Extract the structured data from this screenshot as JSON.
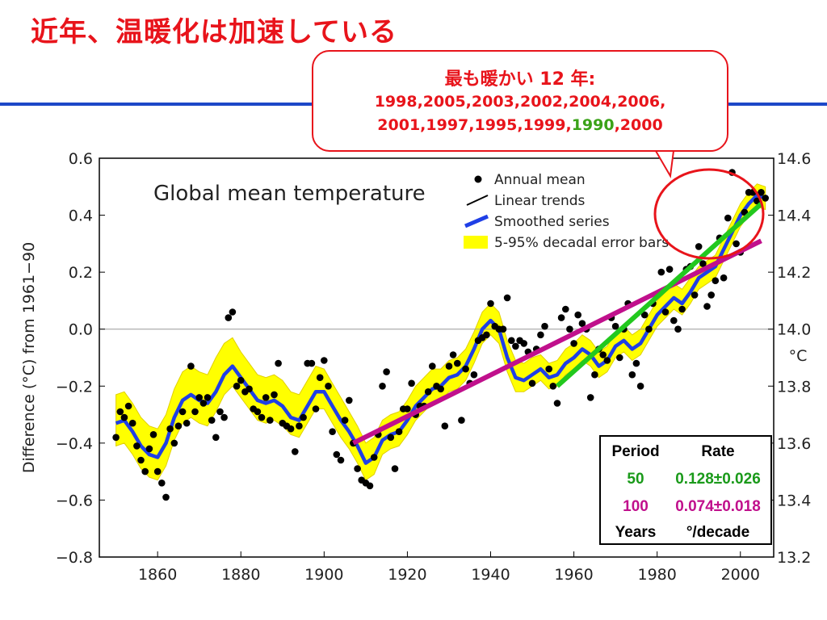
{
  "slide": {
    "title": "近年、温暖化は加速している",
    "callout_heading": "最も暖かい 12 年:",
    "warmest_line1": "1998,2005,2003,2002,2004,2006,",
    "warmest_line2_a": "2001,1997,1995,1999,",
    "warmest_line2_highlight": "1990",
    "warmest_line2_b": ",2000",
    "colors": {
      "title": "#e8141b",
      "rule": "#1d48c8",
      "highlight": "#3aa218"
    }
  },
  "rate_table": {
    "header_period": "Period",
    "header_rate": "Rate",
    "rows": [
      {
        "period": "50",
        "rate": "0.128±0.026",
        "color": "#1a9a1a"
      },
      {
        "period": "100",
        "rate": "0.074±0.018",
        "color": "#c0108c"
      }
    ],
    "footer_period": "Years",
    "footer_rate": "°/decade"
  },
  "chart_data": {
    "type": "scatter",
    "title": "Global mean temperature",
    "ylabel": "Difference (°C) from 1961−90",
    "y2label": "°C",
    "xlim": [
      1846,
      2008
    ],
    "ylim": [
      -0.8,
      0.6
    ],
    "y2lim": [
      13.2,
      14.6
    ],
    "xticks": [
      1860,
      1880,
      1900,
      1920,
      1940,
      1960,
      1980,
      2000
    ],
    "yticks": [
      -0.8,
      -0.6,
      -0.4,
      -0.2,
      0.0,
      0.2,
      0.4,
      0.6
    ],
    "ytick_labels": [
      "−0.8",
      "−0.6",
      "−0.4",
      "−0.2",
      "0.0",
      "0.2",
      "0.4",
      "0.6"
    ],
    "y2ticks": [
      13.2,
      13.4,
      13.6,
      13.8,
      14.0,
      14.2,
      14.4,
      14.6
    ],
    "y2tick_labels": [
      "13.2",
      "13.4",
      "13.6",
      "13.8",
      "14.0",
      "14.2",
      "14.4",
      "14.6"
    ],
    "legend": [
      {
        "label": "Annual mean",
        "kind": "dot",
        "color": "#000000"
      },
      {
        "label": "Linear trends",
        "kind": "line",
        "color": "#000000"
      },
      {
        "label": "Smoothed series",
        "kind": "thick-line",
        "color": "#1f3fe6"
      },
      {
        "label": "5-95% decadal error bars",
        "kind": "band",
        "color": "#ffff00"
      }
    ],
    "legend_position": "top-right",
    "colors": {
      "smooth": "#1f3fe6",
      "band": "#ffff00",
      "band_edge": "#e0d000",
      "trend50": "#22c81e",
      "trend100": "#c0108c",
      "points": "#000000"
    },
    "annual_mean": {
      "x": [
        1850,
        1851,
        1852,
        1853,
        1854,
        1855,
        1856,
        1857,
        1858,
        1859,
        1860,
        1861,
        1862,
        1863,
        1864,
        1865,
        1866,
        1867,
        1868,
        1869,
        1870,
        1871,
        1872,
        1873,
        1874,
        1875,
        1876,
        1877,
        1878,
        1879,
        1880,
        1881,
        1882,
        1883,
        1884,
        1885,
        1886,
        1887,
        1888,
        1889,
        1890,
        1891,
        1892,
        1893,
        1894,
        1895,
        1896,
        1897,
        1898,
        1899,
        1900,
        1901,
        1902,
        1903,
        1904,
        1905,
        1906,
        1907,
        1908,
        1909,
        1910,
        1911,
        1912,
        1913,
        1914,
        1915,
        1916,
        1917,
        1918,
        1919,
        1920,
        1921,
        1922,
        1923,
        1924,
        1925,
        1926,
        1927,
        1928,
        1929,
        1930,
        1931,
        1932,
        1933,
        1934,
        1935,
        1936,
        1937,
        1938,
        1939,
        1940,
        1941,
        1942,
        1943,
        1944,
        1945,
        1946,
        1947,
        1948,
        1949,
        1950,
        1951,
        1952,
        1953,
        1954,
        1955,
        1956,
        1957,
        1958,
        1959,
        1960,
        1961,
        1962,
        1963,
        1964,
        1965,
        1966,
        1967,
        1968,
        1969,
        1970,
        1971,
        1972,
        1973,
        1974,
        1975,
        1976,
        1977,
        1978,
        1979,
        1980,
        1981,
        1982,
        1983,
        1984,
        1985,
        1986,
        1987,
        1988,
        1989,
        1990,
        1991,
        1992,
        1993,
        1994,
        1995,
        1996,
        1997,
        1998,
        1999,
        2000,
        2001,
        2002,
        2003,
        2004,
        2005,
        2006
      ],
      "y": [
        -0.38,
        -0.29,
        -0.31,
        -0.27,
        -0.33,
        -0.41,
        -0.46,
        -0.5,
        -0.42,
        -0.37,
        -0.5,
        -0.54,
        -0.59,
        -0.35,
        -0.4,
        -0.34,
        -0.29,
        -0.33,
        -0.13,
        -0.29,
        -0.24,
        -0.26,
        -0.24,
        -0.32,
        -0.38,
        -0.29,
        -0.31,
        0.04,
        0.06,
        -0.2,
        -0.18,
        -0.22,
        -0.21,
        -0.28,
        -0.29,
        -0.31,
        -0.24,
        -0.32,
        -0.23,
        -0.12,
        -0.33,
        -0.34,
        -0.35,
        -0.43,
        -0.34,
        -0.31,
        -0.12,
        -0.12,
        -0.28,
        -0.17,
        -0.11,
        -0.2,
        -0.36,
        -0.44,
        -0.46,
        -0.32,
        -0.25,
        -0.4,
        -0.49,
        -0.53,
        -0.54,
        -0.55,
        -0.45,
        -0.37,
        -0.2,
        -0.15,
        -0.38,
        -0.49,
        -0.36,
        -0.28,
        -0.28,
        -0.19,
        -0.3,
        -0.27,
        -0.27,
        -0.22,
        -0.13,
        -0.2,
        -0.21,
        -0.34,
        -0.13,
        -0.09,
        -0.12,
        -0.32,
        -0.14,
        -0.19,
        -0.16,
        -0.04,
        -0.03,
        -0.02,
        0.09,
        0.01,
        0.0,
        0.0,
        0.11,
        -0.04,
        -0.06,
        -0.04,
        -0.05,
        -0.08,
        -0.19,
        -0.07,
        -0.02,
        0.01,
        -0.14,
        -0.2,
        -0.26,
        0.04,
        0.07,
        0.0,
        -0.05,
        0.05,
        0.02,
        0.0,
        -0.24,
        -0.16,
        -0.07,
        -0.09,
        -0.11,
        0.04,
        0.01,
        -0.1,
        0.0,
        0.09,
        -0.16,
        -0.12,
        -0.2,
        0.05,
        0.0,
        0.09,
        0.12,
        0.2,
        0.06,
        0.21,
        0.03,
        0.0,
        0.07,
        0.21,
        0.22,
        0.12,
        0.29,
        0.23,
        0.08,
        0.12,
        0.17,
        0.32,
        0.18,
        0.39,
        0.55,
        0.3,
        0.27,
        0.41,
        0.48,
        0.48,
        0.45,
        0.48,
        0.46
      ]
    },
    "smoothed_series": {
      "x": [
        1850,
        1852,
        1854,
        1856,
        1858,
        1860,
        1862,
        1864,
        1866,
        1868,
        1870,
        1872,
        1874,
        1876,
        1878,
        1880,
        1882,
        1884,
        1886,
        1888,
        1890,
        1892,
        1894,
        1896,
        1898,
        1900,
        1902,
        1904,
        1906,
        1908,
        1910,
        1912,
        1914,
        1916,
        1918,
        1920,
        1922,
        1924,
        1926,
        1928,
        1930,
        1932,
        1934,
        1936,
        1938,
        1940,
        1942,
        1944,
        1946,
        1948,
        1950,
        1952,
        1954,
        1956,
        1958,
        1960,
        1962,
        1964,
        1966,
        1968,
        1970,
        1972,
        1974,
        1976,
        1978,
        1980,
        1982,
        1984,
        1986,
        1988,
        1990,
        1992,
        1994,
        1996,
        1998,
        2000,
        2002,
        2004,
        2006
      ],
      "y": [
        -0.33,
        -0.32,
        -0.36,
        -0.41,
        -0.44,
        -0.45,
        -0.4,
        -0.31,
        -0.25,
        -0.23,
        -0.25,
        -0.26,
        -0.22,
        -0.16,
        -0.13,
        -0.17,
        -0.21,
        -0.25,
        -0.26,
        -0.25,
        -0.27,
        -0.31,
        -0.32,
        -0.27,
        -0.22,
        -0.22,
        -0.27,
        -0.32,
        -0.36,
        -0.41,
        -0.47,
        -0.45,
        -0.39,
        -0.37,
        -0.36,
        -0.32,
        -0.27,
        -0.24,
        -0.21,
        -0.2,
        -0.17,
        -0.16,
        -0.13,
        -0.07,
        0.0,
        0.03,
        0.0,
        -0.1,
        -0.17,
        -0.18,
        -0.16,
        -0.14,
        -0.17,
        -0.16,
        -0.12,
        -0.1,
        -0.07,
        -0.09,
        -0.13,
        -0.11,
        -0.06,
        -0.04,
        -0.07,
        -0.05,
        0.0,
        0.05,
        0.08,
        0.11,
        0.09,
        0.13,
        0.18,
        0.2,
        0.22,
        0.28,
        0.34,
        0.4,
        0.44,
        0.47,
        0.46
      ]
    },
    "error_band": {
      "x": [
        1850,
        1852,
        1854,
        1856,
        1858,
        1860,
        1862,
        1864,
        1866,
        1868,
        1870,
        1872,
        1874,
        1876,
        1878,
        1880,
        1882,
        1884,
        1886,
        1888,
        1890,
        1892,
        1894,
        1896,
        1898,
        1900,
        1902,
        1904,
        1906,
        1908,
        1910,
        1912,
        1914,
        1916,
        1918,
        1920,
        1922,
        1924,
        1926,
        1928,
        1930,
        1932,
        1934,
        1936,
        1938,
        1940,
        1942,
        1944,
        1946,
        1948,
        1950,
        1952,
        1954,
        1956,
        1958,
        1960,
        1962,
        1964,
        1966,
        1968,
        1970,
        1972,
        1974,
        1976,
        1978,
        1980,
        1982,
        1984,
        1986,
        1988,
        1990,
        1992,
        1994,
        1996,
        1998,
        2000,
        2002,
        2004,
        2006
      ],
      "lower": [
        -0.41,
        -0.4,
        -0.44,
        -0.49,
        -0.52,
        -0.53,
        -0.48,
        -0.39,
        -0.33,
        -0.31,
        -0.33,
        -0.34,
        -0.29,
        -0.23,
        -0.2,
        -0.24,
        -0.28,
        -0.32,
        -0.33,
        -0.32,
        -0.34,
        -0.37,
        -0.38,
        -0.33,
        -0.28,
        -0.28,
        -0.33,
        -0.38,
        -0.42,
        -0.47,
        -0.53,
        -0.51,
        -0.44,
        -0.42,
        -0.41,
        -0.37,
        -0.32,
        -0.29,
        -0.26,
        -0.25,
        -0.22,
        -0.21,
        -0.18,
        -0.12,
        -0.05,
        -0.02,
        -0.05,
        -0.15,
        -0.22,
        -0.22,
        -0.2,
        -0.18,
        -0.21,
        -0.2,
        -0.16,
        -0.14,
        -0.11,
        -0.13,
        -0.17,
        -0.15,
        -0.1,
        -0.08,
        -0.11,
        -0.09,
        -0.04,
        0.01,
        0.04,
        0.07,
        0.05,
        0.09,
        0.14,
        0.16,
        0.18,
        0.24,
        0.3,
        0.36,
        0.4,
        0.43,
        0.42
      ],
      "upper": [
        -0.23,
        -0.22,
        -0.26,
        -0.31,
        -0.34,
        -0.35,
        -0.3,
        -0.21,
        -0.15,
        -0.13,
        -0.15,
        -0.16,
        -0.1,
        -0.05,
        -0.03,
        -0.08,
        -0.12,
        -0.16,
        -0.17,
        -0.16,
        -0.18,
        -0.22,
        -0.23,
        -0.18,
        -0.13,
        -0.14,
        -0.19,
        -0.24,
        -0.29,
        -0.34,
        -0.4,
        -0.38,
        -0.32,
        -0.3,
        -0.29,
        -0.25,
        -0.2,
        -0.17,
        -0.14,
        -0.14,
        -0.11,
        -0.1,
        -0.07,
        -0.01,
        0.06,
        0.09,
        0.06,
        -0.04,
        -0.11,
        -0.12,
        -0.1,
        -0.09,
        -0.12,
        -0.11,
        -0.07,
        -0.05,
        -0.02,
        -0.04,
        -0.08,
        -0.06,
        -0.01,
        0.01,
        -0.02,
        0.0,
        0.05,
        0.1,
        0.13,
        0.16,
        0.14,
        0.18,
        0.22,
        0.24,
        0.26,
        0.32,
        0.38,
        0.44,
        0.48,
        0.51,
        0.5
      ]
    },
    "trends": [
      {
        "name": "100",
        "x": [
          1907,
          2005
        ],
        "y": [
          -0.4,
          0.31
        ],
        "color": "#c0108c"
      },
      {
        "name": "50",
        "x": [
          1956,
          2005
        ],
        "y": [
          -0.2,
          0.44
        ],
        "color": "#22c81e"
      }
    ]
  }
}
